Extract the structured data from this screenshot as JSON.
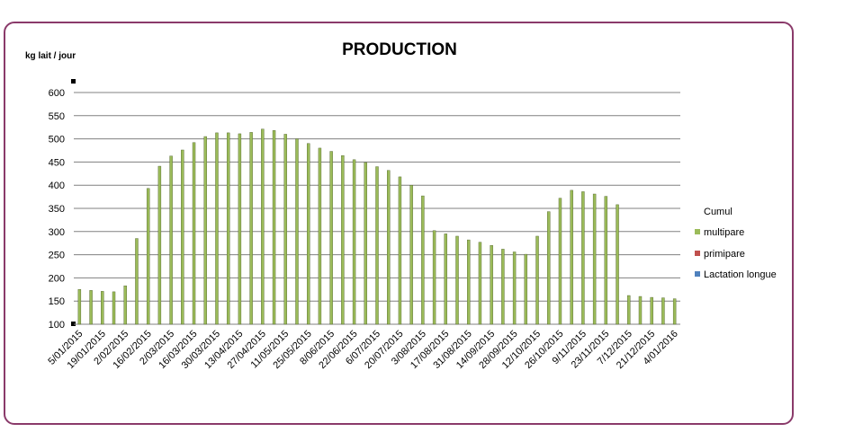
{
  "chart_data": {
    "type": "bar",
    "title": "PRODUCTION",
    "ylabel": "kg lait / jour",
    "xlabel": "",
    "ylim": [
      100,
      600
    ],
    "yticks": [
      100,
      150,
      200,
      250,
      300,
      350,
      400,
      450,
      500,
      550,
      600
    ],
    "grid": true,
    "legend_position": "right",
    "legend_title": "Cumul",
    "colors": {
      "multipare": "#9bbb59",
      "primipare": "#c0504d",
      "lactation_longue": "#4f81bd"
    },
    "x_tick_labels": [
      "5/01/2015",
      "19/01/2015",
      "2/02/2015",
      "16/02/2015",
      "2/03/2015",
      "16/03/2015",
      "30/03/2015",
      "13/04/2015",
      "27/04/2015",
      "11/05/2015",
      "25/05/2015",
      "8/06/2015",
      "22/06/2015",
      "6/07/2015",
      "20/07/2015",
      "3/08/2015",
      "17/08/2015",
      "31/08/2015",
      "14/09/2015",
      "28/09/2015",
      "12/10/2015",
      "26/10/2015",
      "9/11/2015",
      "23/11/2015",
      "7/12/2015",
      "21/12/2015",
      "4/01/2016"
    ],
    "series": [
      {
        "name": "multipare",
        "values": [
          175,
          173,
          171,
          170,
          183,
          285,
          393,
          441,
          463,
          476,
          492,
          505,
          513,
          513,
          511,
          514,
          521,
          518,
          510,
          500,
          490,
          480,
          473,
          464,
          455,
          449,
          440,
          432,
          418,
          400,
          377,
          302,
          295,
          290,
          282,
          277,
          270,
          262,
          256,
          251,
          290,
          343,
          372,
          389,
          386,
          381,
          376,
          358,
          162,
          160,
          158,
          157,
          155
        ]
      },
      {
        "name": "primipare",
        "values": []
      },
      {
        "name": "Lactation longue",
        "values": []
      }
    ]
  }
}
